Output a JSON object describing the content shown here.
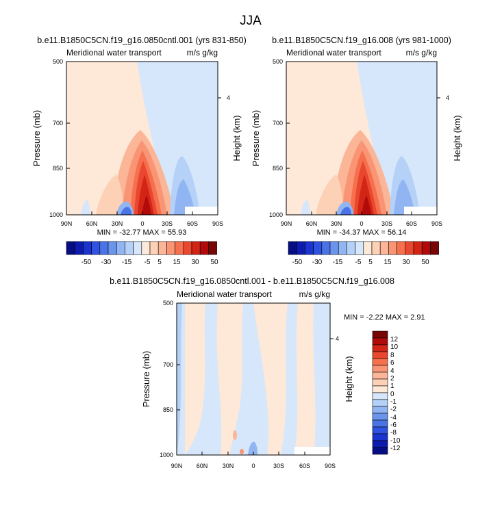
{
  "main_title": "JJA",
  "colors": {
    "pos": [
      "#fee8d8",
      "#fdd1b6",
      "#fbb597",
      "#f99575",
      "#f6704e",
      "#e9472f",
      "#d22516",
      "#b00a0a",
      "#7a0505"
    ],
    "neg": [
      "#d6e7fb",
      "#b5d1f8",
      "#91b5f2",
      "#6b95ec",
      "#4a74e6",
      "#2f52e0",
      "#1b33cf",
      "#0d1cae",
      "#070d82"
    ]
  },
  "chart_data": [
    {
      "type": "contour",
      "title": "b.e11.B1850C5CN.f19_g16.0850cntl.001 (yrs 831-850)",
      "left_label": "Meridional water transport",
      "right_label": "m/s g/kg",
      "ylabel": "Pressure (mb)",
      "ylabel_right": "Height (km)",
      "x_ticks": [
        "90N",
        "60N",
        "30N",
        "0",
        "30S",
        "60S",
        "90S"
      ],
      "y_ticks": [
        "500",
        "700",
        "850",
        "1000"
      ],
      "right_ticks": [
        "4"
      ],
      "stats": "MIN = -32.77  MAX = 55.93",
      "colorbar_labels": [
        "-50",
        "-30",
        "-15",
        "-5",
        "5",
        "15",
        "30",
        "50"
      ]
    },
    {
      "type": "contour",
      "title": "b.e11.B1850C5CN.f19_g16.008 (yrs 981-1000)",
      "left_label": "Meridional water transport",
      "right_label": "m/s g/kg",
      "ylabel": "Pressure (mb)",
      "ylabel_right": "Height (km)",
      "x_ticks": [
        "90N",
        "60N",
        "30N",
        "0",
        "30S",
        "60S",
        "90S"
      ],
      "y_ticks": [
        "500",
        "700",
        "850",
        "1000"
      ],
      "right_ticks": [
        "4"
      ],
      "stats": "MIN = -34.37  MAX = 56.14",
      "colorbar_labels": [
        "-50",
        "-30",
        "-15",
        "-5",
        "5",
        "15",
        "30",
        "50"
      ]
    },
    {
      "type": "contour",
      "title": "b.e11.B1850C5CN.f19_g16.0850cntl.001 - b.e11.B1850C5CN.f19_g16.008",
      "left_label": "Meridional water transport",
      "right_label": "m/s g/kg",
      "ylabel": "Pressure (mb)",
      "ylabel_right": "Height (km)",
      "x_ticks": [
        "90N",
        "60N",
        "30N",
        "0",
        "30S",
        "60S",
        "90S"
      ],
      "y_ticks": [
        "500",
        "700",
        "850",
        "1000"
      ],
      "right_ticks": [
        "4"
      ],
      "stats": "MIN = -2.22  MAX = 2.91",
      "colorbar_labels": [
        "12",
        "10",
        "8",
        "6",
        "4",
        "2",
        "1",
        "0",
        "-1",
        "-2",
        "-4",
        "-6",
        "-8",
        "-10",
        "-12"
      ]
    }
  ]
}
